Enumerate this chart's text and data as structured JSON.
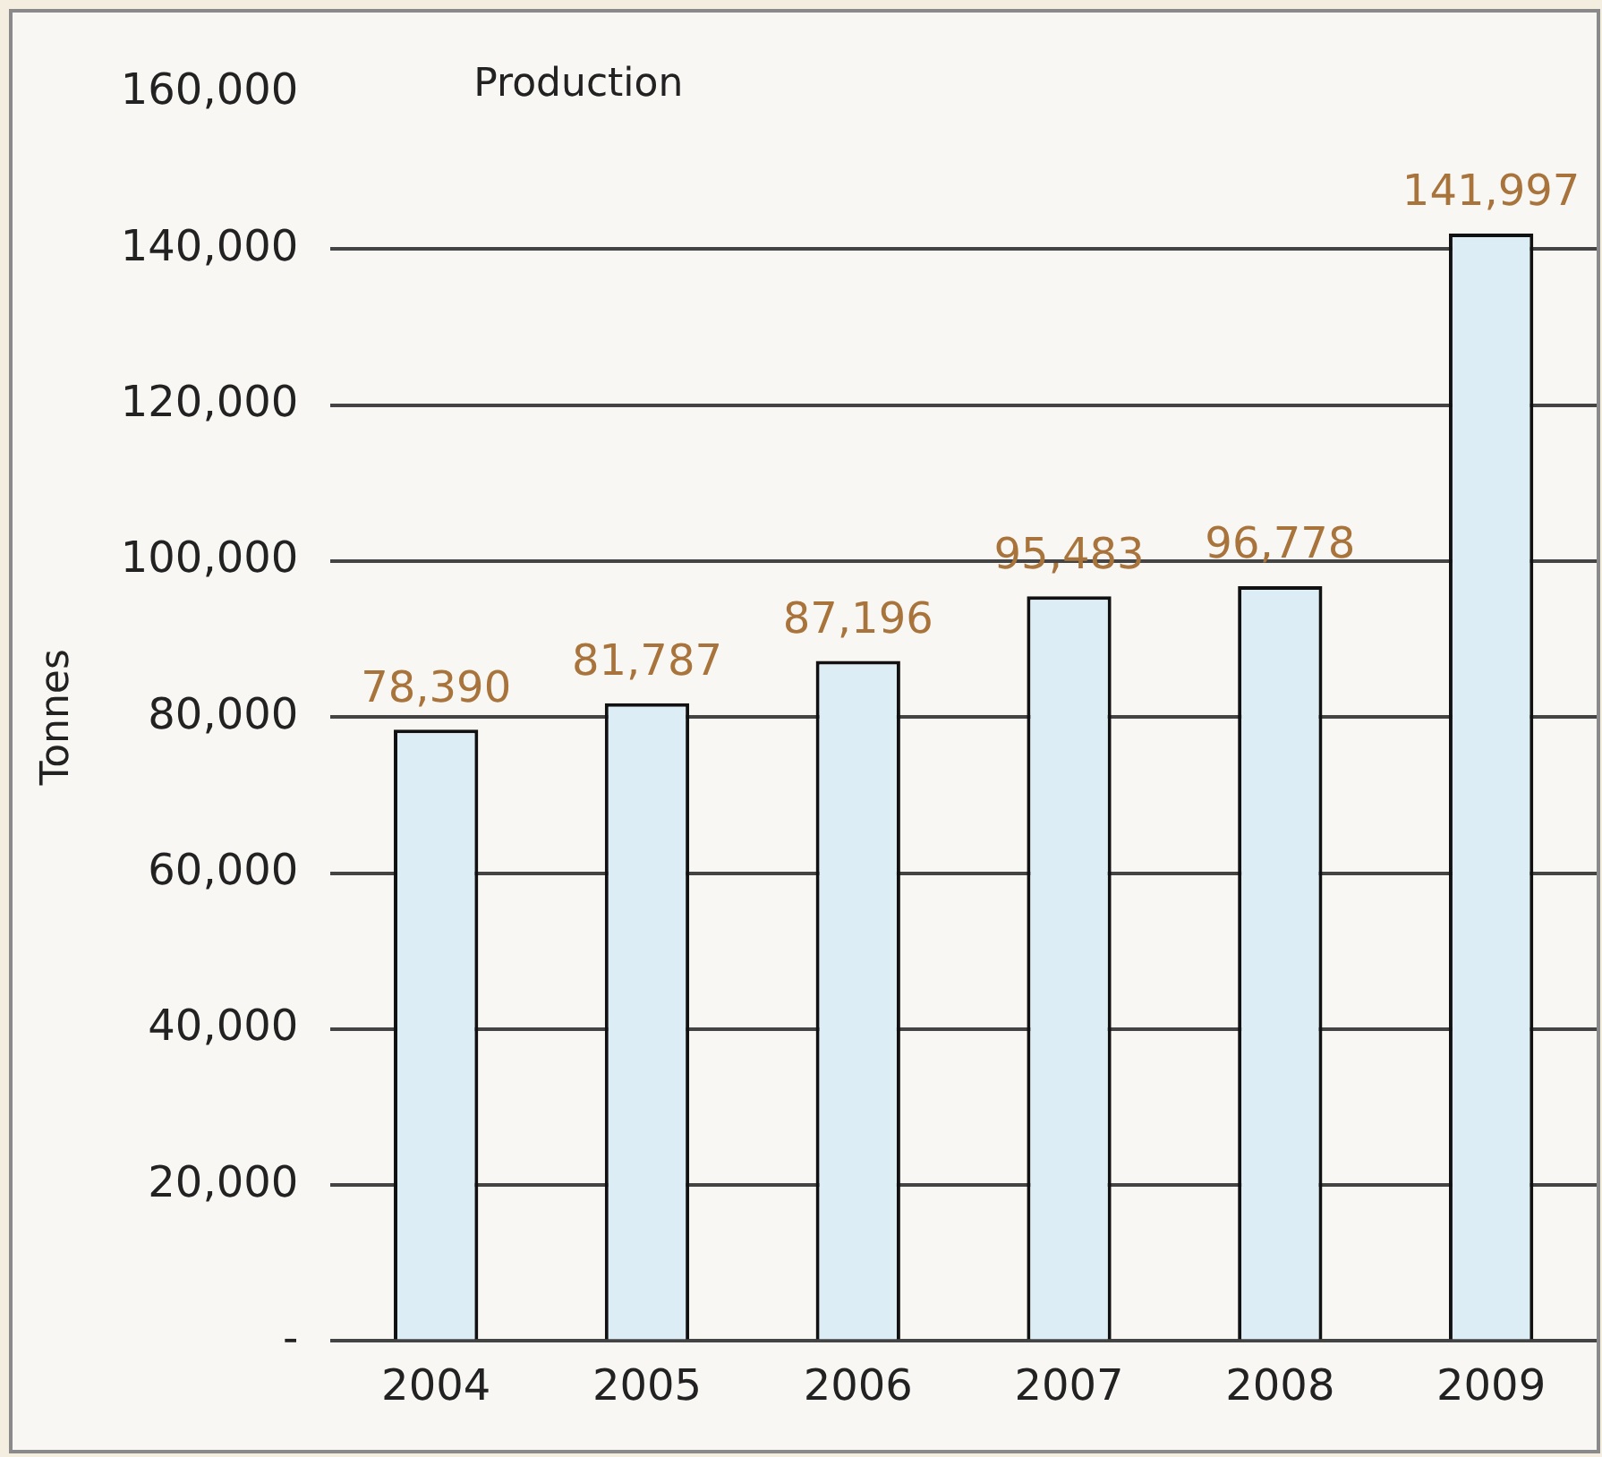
{
  "chart_data": {
    "type": "bar",
    "title": "Production",
    "ylabel": "Tonnes",
    "categories": [
      "2004",
      "2005",
      "2006",
      "2007",
      "2008",
      "2009"
    ],
    "values": [
      78390,
      81787,
      87196,
      95483,
      96778,
      141997
    ],
    "color": "#dcedf5",
    "ylim": [
      0,
      160000
    ],
    "yticks": [
      {
        "value": 0,
        "label": "-"
      },
      {
        "value": 20000,
        "label": "20,000"
      },
      {
        "value": 40000,
        "label": "40,000"
      },
      {
        "value": 60000,
        "label": "60,000"
      },
      {
        "value": 80000,
        "label": "80,000"
      },
      {
        "value": 100000,
        "label": "100,000"
      },
      {
        "value": 120000,
        "label": "120,000"
      },
      {
        "value": 140000,
        "label": "140,000"
      },
      {
        "value": 160000,
        "label": "160,000"
      }
    ],
    "value_labels": [
      "78,390",
      "81,787",
      "87,196",
      "95,483",
      "96,778",
      "141,997"
    ],
    "grid": "y"
  }
}
